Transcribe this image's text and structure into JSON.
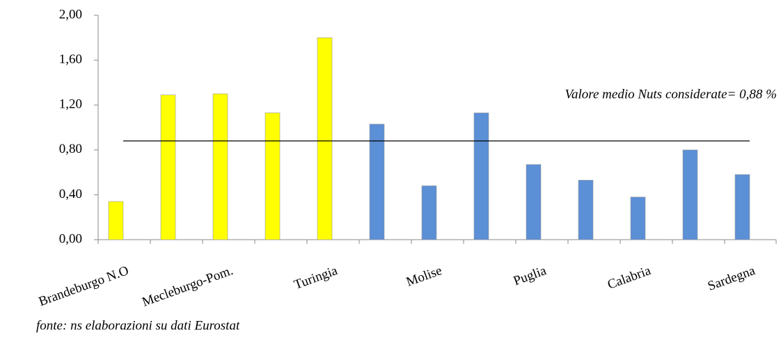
{
  "chart_data": {
    "type": "bar",
    "categories": [
      "Brandeburgo N.O",
      null,
      "Mecleburgo-Pom.",
      null,
      "Turingia",
      null,
      "Molise",
      null,
      "Puglia",
      null,
      "Calabria",
      null,
      "Sardegna"
    ],
    "values": [
      0.34,
      1.29,
      1.3,
      1.13,
      1.8,
      1.03,
      0.48,
      1.13,
      0.67,
      0.53,
      0.38,
      0.8,
      0.58
    ],
    "colors": [
      "#ffff00",
      "#ffff00",
      "#ffff00",
      "#ffff00",
      "#ffff00",
      "#5b8fd6",
      "#5b8fd6",
      "#5b8fd6",
      "#5b8fd6",
      "#5b8fd6",
      "#5b8fd6",
      "#5b8fd6",
      "#5b8fd6"
    ],
    "ylim": [
      0,
      2
    ],
    "yticks": [
      {
        "value": 0,
        "label": "0,00"
      },
      {
        "value": 0.4,
        "label": "0,40"
      },
      {
        "value": 0.8,
        "label": "0,80"
      },
      {
        "value": 1.2,
        "label": "1,20"
      },
      {
        "value": 1.6,
        "label": "1,60"
      },
      {
        "value": 2,
        "label": "2,00"
      }
    ],
    "reference_line": {
      "value": 0.88,
      "label": "Valore medio Nuts considerate= 0,88 %"
    },
    "source": "fonte: ns elaborazioni su dati Eurostat",
    "grid": false
  }
}
